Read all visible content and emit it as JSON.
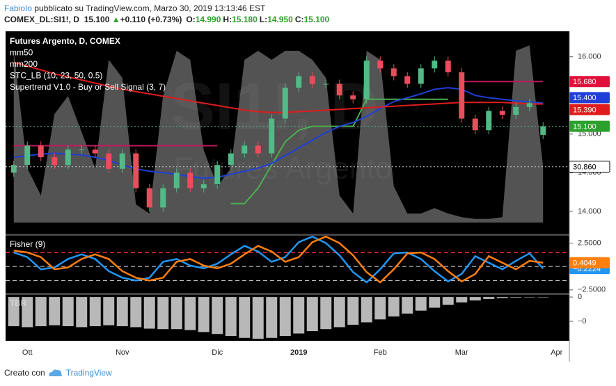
{
  "header": {
    "author": "FabioIo",
    "published": "pubblicato su TradingView.com, Marzo 30, 2019 13:13:46 EST",
    "symbol": "COMEX_DL:SI1!, D",
    "price": "15.100",
    "arrow": "▲",
    "change": "+0.110 (+0.73%)",
    "ohlc": [
      {
        "label": "O:",
        "value": "14.990"
      },
      {
        "label": "H:",
        "value": "15.180"
      },
      {
        "label": "L:",
        "value": "14.950"
      },
      {
        "label": "C:",
        "value": "15.100"
      }
    ]
  },
  "footer": {
    "text": "Creato con",
    "brand": "TradingView"
  },
  "chart_data": [
    {
      "type": "candlestick",
      "title": "Futures Argento, D, COMEX",
      "watermark": "SI1!, D",
      "watermark_sub": "Futures Argento",
      "categories": [
        null,
        "Ott",
        null,
        null,
        null,
        null,
        null,
        null,
        "Nov",
        null,
        null,
        null,
        null,
        null,
        null,
        "Dic",
        null,
        null,
        null,
        null,
        null,
        "2019",
        null,
        null,
        null,
        null,
        null,
        "Feb",
        null,
        null,
        null,
        null,
        null,
        "Mar",
        null,
        null,
        null,
        null,
        null,
        null,
        "Apr"
      ],
      "open": [
        14.5,
        14.6,
        14.85,
        14.7,
        14.6,
        14.8,
        14.8,
        14.75,
        14.55,
        14.75,
        14.3,
        14.05,
        14.3,
        14.5,
        14.3,
        14.35,
        14.6,
        14.75,
        14.85,
        14.75,
        15.2,
        15.6,
        15.75,
        15.65,
        15.65,
        15.5,
        15.45,
        15.95,
        15.85,
        15.75,
        15.65,
        15.85,
        15.95,
        15.8,
        15.2,
        15.05,
        15.3,
        15.25,
        15.35,
        14.99,
        null
      ],
      "close": [
        14.6,
        14.85,
        14.7,
        14.6,
        14.8,
        14.8,
        14.75,
        14.55,
        14.75,
        14.3,
        14.05,
        14.3,
        14.5,
        14.3,
        14.35,
        14.6,
        14.75,
        14.85,
        14.75,
        15.2,
        15.6,
        15.75,
        15.65,
        15.65,
        15.5,
        15.45,
        15.95,
        15.85,
        15.75,
        15.65,
        15.85,
        15.95,
        15.8,
        15.2,
        15.05,
        15.3,
        15.25,
        15.35,
        15.4,
        15.1,
        null
      ],
      "close_last_label": "15.100",
      "up_color": "#53b987",
      "down_color": "#eb4d5c",
      "series": [
        {
          "name": "mm50",
          "color": "#1e3fd8",
          "last_label": "15.400",
          "values": [
            14.7,
            14.72,
            14.74,
            14.75,
            14.74,
            14.73,
            14.7,
            14.66,
            14.6,
            14.55,
            14.52,
            14.5,
            14.48,
            14.45,
            14.43,
            14.44,
            14.48,
            14.52,
            14.56,
            14.62,
            14.72,
            14.82,
            14.92,
            15.02,
            15.1,
            15.15,
            15.23,
            15.33,
            15.42,
            15.47,
            15.52,
            15.58,
            15.6,
            15.58,
            15.5,
            15.47,
            15.45,
            15.43,
            15.42,
            15.4,
            null
          ]
        },
        {
          "name": "mm200",
          "color": "#e01c1c",
          "last_label": "15.390",
          "values": [
            15.93,
            15.88,
            15.83,
            15.78,
            15.74,
            15.7,
            15.66,
            15.62,
            15.58,
            15.55,
            15.52,
            15.49,
            15.46,
            15.43,
            15.4,
            15.37,
            15.34,
            15.31,
            15.29,
            15.28,
            15.28,
            15.29,
            15.3,
            15.31,
            15.32,
            15.33,
            15.34,
            15.35,
            15.36,
            15.37,
            15.38,
            15.39,
            15.4,
            15.41,
            15.41,
            15.41,
            15.41,
            15.4,
            15.39,
            15.39,
            null
          ]
        }
      ],
      "stc": {
        "name": "STC_LB (10, 23, 50, 0.5)",
        "color": "#8a8a8a",
        "ylim": [
          0,
          100
        ],
        "last_label": "30.860",
        "values": [
          95,
          30,
          15,
          60,
          70,
          50,
          30,
          90,
          80,
          10,
          5,
          70,
          95,
          90,
          40,
          20,
          30,
          90,
          95,
          90,
          95,
          95,
          90,
          80,
          15,
          5,
          95,
          90,
          20,
          5,
          5,
          8,
          5,
          3,
          2,
          2,
          3,
          95,
          98,
          30.86,
          null
        ]
      },
      "supertrend": {
        "name": "Supertrend V1.0 - Buy or Sell Signal (3, 7)",
        "up_color": "#4caf50",
        "down_color": "#c2185b",
        "down_last_label": "15.680",
        "down": [
          14.85,
          14.85,
          14.85,
          14.85,
          14.85,
          14.85,
          14.85,
          14.85,
          14.85,
          14.85,
          14.85,
          14.85,
          14.85,
          14.85,
          14.85,
          14.85,
          null,
          null,
          null,
          null,
          null,
          null,
          null,
          null,
          null,
          null,
          null,
          null,
          null,
          null,
          null,
          null,
          null,
          15.68,
          15.68,
          15.68,
          15.68,
          15.68,
          15.68,
          15.68,
          null
        ],
        "up": [
          null,
          null,
          null,
          null,
          null,
          null,
          null,
          null,
          null,
          null,
          null,
          null,
          null,
          null,
          null,
          null,
          14.1,
          14.1,
          14.3,
          14.6,
          14.9,
          15.05,
          15.1,
          15.1,
          15.1,
          15.1,
          15.45,
          15.45,
          15.45,
          15.45,
          15.45,
          15.45,
          15.45,
          null,
          null,
          null,
          null,
          null,
          null,
          null,
          null
        ]
      },
      "ylim": [
        13.72,
        16.33
      ],
      "yticks": [
        {
          "value": 16,
          "label": "16.000"
        },
        {
          "value": 15.5,
          "label": "15.500"
        },
        {
          "value": 15,
          "label": "15.000"
        },
        {
          "value": 14.5,
          "label": "14.500"
        },
        {
          "value": 14,
          "label": "14.000"
        }
      ]
    },
    {
      "type": "line",
      "title": "Fisher (9)",
      "ylim": [
        -2.74,
        3.21
      ],
      "yticks": [
        {
          "value": 2.5,
          "label": "2.5000"
        },
        {
          "value": -2.5,
          "label": "−2.5000"
        }
      ],
      "levels": [
        {
          "value": 1.5,
          "color": "#ff2a2a"
        },
        {
          "value": 0,
          "color": "#dddddd"
        },
        {
          "value": -1.5,
          "color": "#dddddd"
        }
      ],
      "series": [
        {
          "color": "#2196f3",
          "last_label": "−0.2224",
          "values": [
            1.5,
            1.0,
            -0.3,
            -0.1,
            0.8,
            1.3,
            0.8,
            -0.5,
            -1.2,
            -1.5,
            -1.2,
            0.5,
            0.8,
            0.1,
            -0.2,
            0.3,
            1.3,
            2.2,
            1.6,
            0.5,
            1.0,
            2.6,
            3.2,
            2.5,
            1.2,
            -0.6,
            -1.7,
            -0.3,
            1.4,
            1.5,
            0.8,
            -0.5,
            -1.6,
            -0.8,
            1.1,
            0.4,
            -0.3,
            0.6,
            1.4,
            -0.2224,
            null
          ]
        },
        {
          "color": "#ff7f0e",
          "last_label": "0.4049",
          "values": [
            1.7,
            1.5,
            1.0,
            -0.3,
            -0.1,
            0.8,
            1.3,
            0.8,
            -0.5,
            -1.2,
            -1.5,
            -1.2,
            0.5,
            0.8,
            0.1,
            -0.2,
            0.3,
            1.3,
            2.2,
            1.6,
            0.5,
            1.0,
            2.6,
            3.2,
            2.5,
            1.2,
            -0.6,
            -1.7,
            -0.3,
            1.4,
            1.5,
            0.8,
            -0.5,
            -1.6,
            -0.8,
            1.1,
            0.4,
            -0.3,
            0.6,
            0.4049,
            null
          ]
        }
      ]
    },
    {
      "type": "bar",
      "title": "TBR",
      "color": "#b8b8b8",
      "ylim": [
        -0.9,
        0.03
      ],
      "yticks": [
        {
          "value": 0,
          "label": "0"
        },
        {
          "value": -0.5,
          "label": "−0"
        }
      ],
      "values": [
        -0.6,
        -0.62,
        -0.6,
        -0.58,
        -0.6,
        -0.62,
        -0.6,
        -0.58,
        -0.6,
        -0.62,
        -0.65,
        -0.66,
        -0.66,
        -0.68,
        -0.72,
        -0.76,
        -0.8,
        -0.84,
        -0.86,
        -0.84,
        -0.8,
        -0.75,
        -0.7,
        -0.66,
        -0.62,
        -0.57,
        -0.52,
        -0.46,
        -0.4,
        -0.34,
        -0.28,
        -0.22,
        -0.16,
        -0.11,
        -0.07,
        -0.04,
        -0.02,
        -0.01,
        -0.005,
        -0.002,
        null
      ]
    }
  ]
}
